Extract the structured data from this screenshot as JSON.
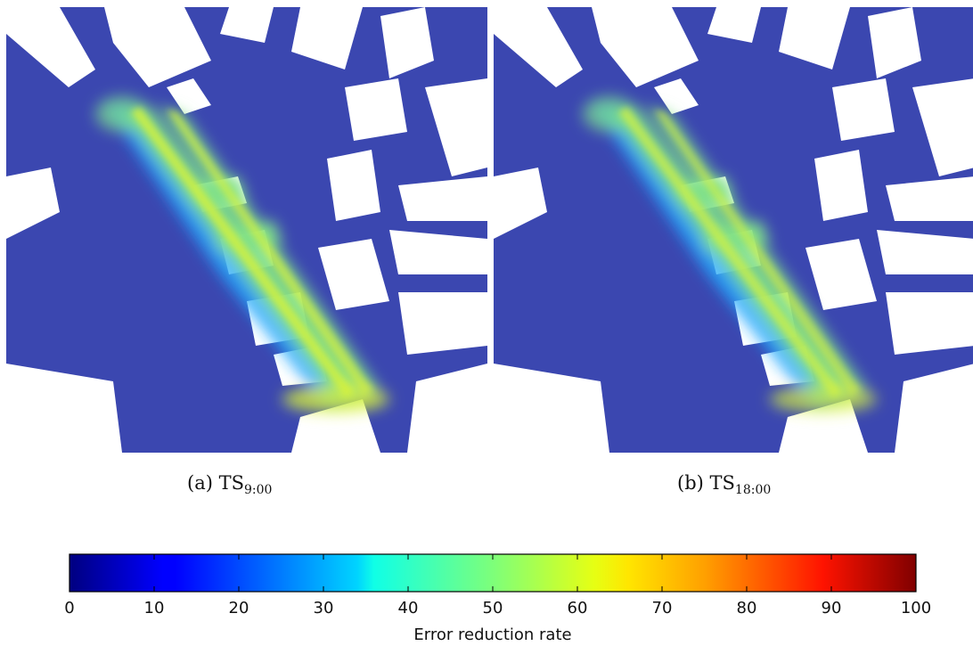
{
  "panels": [
    {
      "id": "a",
      "caption_prefix": "(a) TS",
      "caption_sub": "9:00"
    },
    {
      "id": "b",
      "caption_prefix": "(b) TS",
      "caption_sub": "18:00"
    }
  ],
  "colorbar": {
    "label": "Error reduction rate",
    "ticks": [
      "0",
      "10",
      "20",
      "30",
      "40",
      "50",
      "60",
      "70",
      "80",
      "90",
      "100"
    ],
    "range": [
      0,
      100
    ],
    "colormap": "jet"
  },
  "colors": {
    "background_field": "#3b47b0",
    "building": "#ffffff",
    "low": "#2b2fcf",
    "mid": "#1ea8ff",
    "high": "#7fe08a",
    "peak": "#d9f23a"
  }
}
